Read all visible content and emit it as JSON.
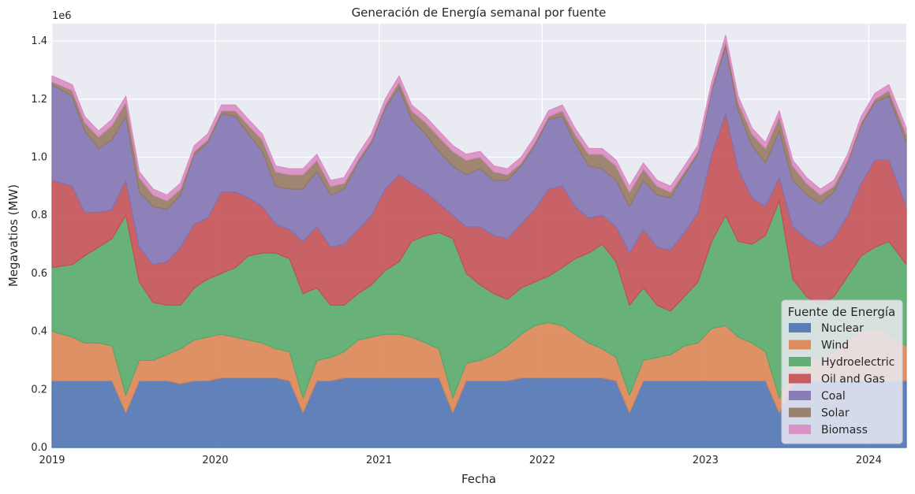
{
  "chart_data": {
    "type": "area",
    "stacked": true,
    "title": "Generación de Energía semanal por fuente",
    "xlabel": "Fecha",
    "ylabel": "Megavatios (MW)",
    "y_offset_label": "1e6",
    "xlim": [
      "2019-01-01",
      "2024-03-25"
    ],
    "ylim": [
      0,
      1.46
    ],
    "x_ticks": [
      "2019",
      "2020",
      "2021",
      "2022",
      "2023",
      "2024"
    ],
    "y_ticks": [
      "0.0",
      "0.2",
      "0.4",
      "0.6",
      "0.8",
      "1.0",
      "1.2",
      "1.4"
    ],
    "grid": true,
    "legend_title": "Fuente de Energía",
    "legend_position": "lower-right",
    "background": "#eaeaf2",
    "x": [
      "2019-01",
      "2019-02",
      "2019-03",
      "2019-04",
      "2019-05",
      "2019-06",
      "2019-07",
      "2019-08",
      "2019-09",
      "2019-10",
      "2019-11",
      "2019-12",
      "2020-01",
      "2020-02",
      "2020-03",
      "2020-04",
      "2020-05",
      "2020-06",
      "2020-07",
      "2020-08",
      "2020-09",
      "2020-10",
      "2020-11",
      "2020-12",
      "2021-01",
      "2021-02",
      "2021-03",
      "2021-04",
      "2021-05",
      "2021-06",
      "2021-07",
      "2021-08",
      "2021-09",
      "2021-10",
      "2021-11",
      "2021-12",
      "2022-01",
      "2022-02",
      "2022-03",
      "2022-04",
      "2022-05",
      "2022-06",
      "2022-07",
      "2022-08",
      "2022-09",
      "2022-10",
      "2022-11",
      "2022-12",
      "2023-01",
      "2023-02",
      "2023-03",
      "2023-04",
      "2023-05",
      "2023-06",
      "2023-07",
      "2023-08",
      "2023-09",
      "2023-10",
      "2023-11",
      "2023-12",
      "2024-01",
      "2024-02",
      "2024-03"
    ],
    "series": [
      {
        "name": "Nuclear",
        "color": "#4c72b0",
        "values": [
          0.23,
          0.23,
          0.23,
          0.23,
          0.23,
          0.12,
          0.23,
          0.23,
          0.23,
          0.22,
          0.23,
          0.23,
          0.24,
          0.24,
          0.24,
          0.24,
          0.24,
          0.23,
          0.12,
          0.23,
          0.23,
          0.24,
          0.24,
          0.24,
          0.24,
          0.24,
          0.24,
          0.24,
          0.24,
          0.12,
          0.23,
          0.23,
          0.23,
          0.23,
          0.24,
          0.24,
          0.24,
          0.24,
          0.24,
          0.24,
          0.24,
          0.23,
          0.12,
          0.23,
          0.23,
          0.23,
          0.23,
          0.23,
          0.23,
          0.23,
          0.23,
          0.23,
          0.23,
          0.12,
          0.22,
          0.23,
          0.23,
          0.23,
          0.23,
          0.23,
          0.23,
          0.23,
          0.23
        ]
      },
      {
        "name": "Wind",
        "color": "#dd8452",
        "values": [
          0.17,
          0.15,
          0.13,
          0.13,
          0.12,
          0.06,
          0.07,
          0.07,
          0.09,
          0.12,
          0.14,
          0.15,
          0.15,
          0.14,
          0.13,
          0.12,
          0.1,
          0.1,
          0.05,
          0.07,
          0.08,
          0.09,
          0.13,
          0.14,
          0.15,
          0.15,
          0.14,
          0.12,
          0.1,
          0.05,
          0.06,
          0.07,
          0.09,
          0.12,
          0.15,
          0.18,
          0.19,
          0.18,
          0.15,
          0.12,
          0.1,
          0.08,
          0.06,
          0.07,
          0.08,
          0.09,
          0.12,
          0.13,
          0.18,
          0.19,
          0.15,
          0.13,
          0.1,
          0.05,
          0.06,
          0.07,
          0.08,
          0.1,
          0.14,
          0.17,
          0.18,
          0.16,
          0.12
        ]
      },
      {
        "name": "Hydroelectric",
        "color": "#55a868",
        "values": [
          0.22,
          0.25,
          0.3,
          0.33,
          0.37,
          0.62,
          0.27,
          0.2,
          0.17,
          0.15,
          0.18,
          0.2,
          0.21,
          0.24,
          0.29,
          0.31,
          0.33,
          0.32,
          0.36,
          0.25,
          0.18,
          0.16,
          0.16,
          0.18,
          0.22,
          0.25,
          0.33,
          0.37,
          0.4,
          0.55,
          0.31,
          0.26,
          0.21,
          0.16,
          0.16,
          0.15,
          0.16,
          0.2,
          0.26,
          0.31,
          0.36,
          0.33,
          0.31,
          0.25,
          0.18,
          0.15,
          0.17,
          0.21,
          0.3,
          0.38,
          0.33,
          0.34,
          0.4,
          0.68,
          0.3,
          0.22,
          0.18,
          0.19,
          0.22,
          0.26,
          0.28,
          0.32,
          0.28
        ]
      },
      {
        "name": "Oil and Gas",
        "color": "#c44e52",
        "values": [
          0.3,
          0.27,
          0.15,
          0.12,
          0.1,
          0.12,
          0.12,
          0.13,
          0.15,
          0.2,
          0.22,
          0.21,
          0.28,
          0.26,
          0.2,
          0.16,
          0.1,
          0.1,
          0.18,
          0.21,
          0.2,
          0.21,
          0.22,
          0.24,
          0.28,
          0.3,
          0.2,
          0.15,
          0.1,
          0.08,
          0.16,
          0.2,
          0.2,
          0.21,
          0.22,
          0.25,
          0.3,
          0.28,
          0.18,
          0.12,
          0.1,
          0.12,
          0.18,
          0.2,
          0.2,
          0.21,
          0.22,
          0.24,
          0.3,
          0.35,
          0.25,
          0.16,
          0.1,
          0.08,
          0.18,
          0.2,
          0.2,
          0.2,
          0.21,
          0.25,
          0.3,
          0.28,
          0.2
        ]
      },
      {
        "name": "Coal",
        "color": "#8172b2",
        "values": [
          0.33,
          0.31,
          0.28,
          0.22,
          0.24,
          0.22,
          0.19,
          0.2,
          0.18,
          0.18,
          0.24,
          0.26,
          0.27,
          0.26,
          0.22,
          0.19,
          0.13,
          0.14,
          0.18,
          0.19,
          0.18,
          0.19,
          0.23,
          0.25,
          0.28,
          0.3,
          0.22,
          0.2,
          0.18,
          0.17,
          0.18,
          0.2,
          0.19,
          0.2,
          0.2,
          0.22,
          0.24,
          0.24,
          0.22,
          0.18,
          0.16,
          0.16,
          0.16,
          0.17,
          0.18,
          0.18,
          0.2,
          0.2,
          0.22,
          0.23,
          0.2,
          0.18,
          0.15,
          0.16,
          0.16,
          0.15,
          0.15,
          0.16,
          0.18,
          0.2,
          0.2,
          0.22,
          0.22
        ]
      },
      {
        "name": "Solar",
        "color": "#937860",
        "values": [
          0.01,
          0.02,
          0.03,
          0.04,
          0.05,
          0.05,
          0.05,
          0.04,
          0.03,
          0.02,
          0.01,
          0.01,
          0.01,
          0.02,
          0.03,
          0.04,
          0.05,
          0.05,
          0.05,
          0.04,
          0.03,
          0.02,
          0.01,
          0.01,
          0.01,
          0.02,
          0.03,
          0.04,
          0.05,
          0.05,
          0.05,
          0.04,
          0.03,
          0.02,
          0.01,
          0.01,
          0.01,
          0.02,
          0.03,
          0.04,
          0.05,
          0.05,
          0.05,
          0.04,
          0.03,
          0.02,
          0.01,
          0.01,
          0.01,
          0.02,
          0.03,
          0.04,
          0.05,
          0.05,
          0.05,
          0.04,
          0.03,
          0.02,
          0.01,
          0.01,
          0.01,
          0.02,
          0.03
        ]
      },
      {
        "name": "Biomass",
        "color": "#da8bc3",
        "values": [
          0.02,
          0.02,
          0.02,
          0.02,
          0.02,
          0.02,
          0.02,
          0.02,
          0.02,
          0.02,
          0.02,
          0.02,
          0.02,
          0.02,
          0.02,
          0.02,
          0.02,
          0.02,
          0.02,
          0.02,
          0.02,
          0.02,
          0.02,
          0.02,
          0.02,
          0.02,
          0.02,
          0.02,
          0.02,
          0.02,
          0.02,
          0.02,
          0.02,
          0.02,
          0.02,
          0.02,
          0.02,
          0.02,
          0.02,
          0.02,
          0.02,
          0.02,
          0.02,
          0.02,
          0.02,
          0.02,
          0.02,
          0.02,
          0.02,
          0.02,
          0.02,
          0.02,
          0.02,
          0.02,
          0.02,
          0.02,
          0.02,
          0.02,
          0.02,
          0.02,
          0.02,
          0.02,
          0.02
        ]
      }
    ]
  }
}
